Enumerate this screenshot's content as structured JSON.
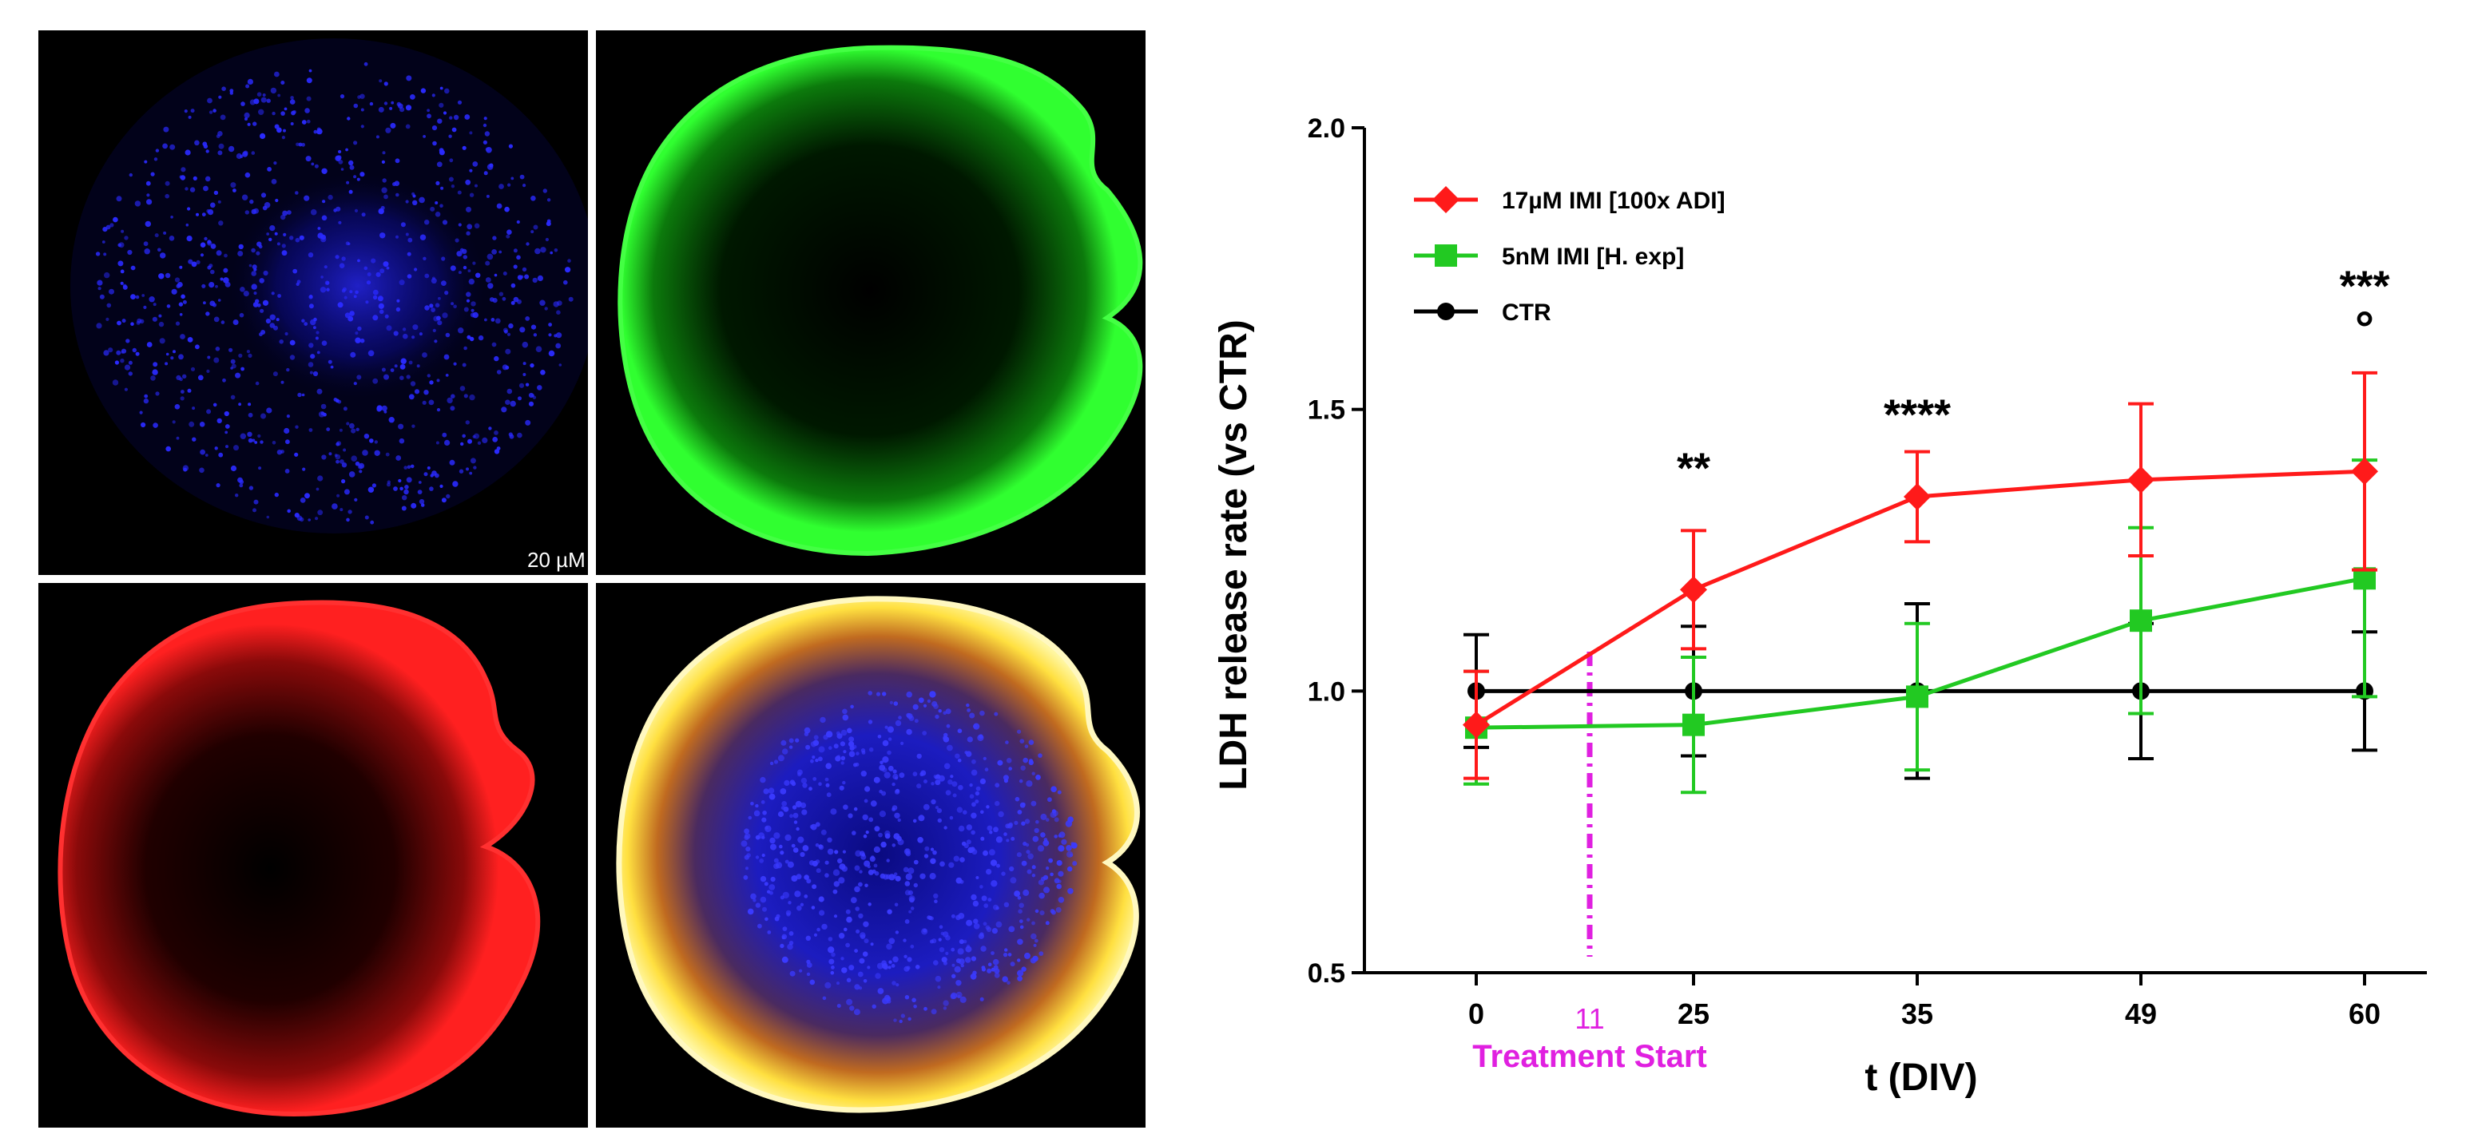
{
  "figure_panels": {
    "nuclei": {
      "label": "nuclei stain (blue)",
      "color": "#1a1aff"
    },
    "marker_green": {
      "label": "marker stain (green)",
      "color": "#22d622"
    },
    "marker_red": {
      "label": "marker stain (red)",
      "color": "#ff1a1a"
    },
    "merge": {
      "label": "merged channels"
    },
    "scalebar_text": "20 µM"
  },
  "chart_data": {
    "type": "line",
    "title": "",
    "xlabel": "t (DIV)",
    "ylabel": "LDH release rate (vs CTR)",
    "ylim": [
      0.5,
      2.0
    ],
    "yticks": [
      "0.5",
      "1.0",
      "1.5",
      "2.0"
    ],
    "xticks": [
      "0",
      "25",
      "35",
      "49",
      "60"
    ],
    "x": [
      0,
      25,
      35,
      49,
      60
    ],
    "annotation": {
      "x_label": "11",
      "text": "Treatment Start",
      "color": "#e020e0"
    },
    "series": [
      {
        "name": "17µM IMI [100x ADI]",
        "color": "#ff1a1a",
        "marker": "diamond",
        "values": [
          0.94,
          1.18,
          1.345,
          1.375,
          1.39
        ],
        "errors": [
          0.095,
          0.105,
          0.08,
          0.135,
          0.175
        ]
      },
      {
        "name": "5nM IMI [H. exp]",
        "color": "#22c922",
        "marker": "square",
        "values": [
          0.935,
          0.94,
          0.99,
          1.125,
          1.2
        ],
        "errors": [
          0.1,
          0.12,
          0.13,
          0.165,
          0.21
        ]
      },
      {
        "name": "CTR",
        "color": "#000000",
        "marker": "circle",
        "values": [
          1.0,
          1.0,
          1.0,
          1.0,
          1.0
        ],
        "errors": [
          0.1,
          0.115,
          0.155,
          0.12,
          0.105
        ]
      }
    ],
    "significance": [
      {
        "x": 25,
        "text": "**"
      },
      {
        "x": 35,
        "text": "****"
      },
      {
        "x": 60,
        "text": "***"
      },
      {
        "x": 60,
        "text": "°"
      }
    ]
  }
}
